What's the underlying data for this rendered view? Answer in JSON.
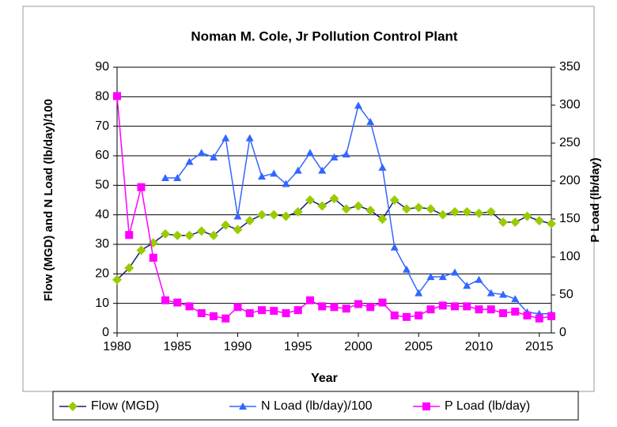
{
  "chart_data": {
    "type": "line",
    "title": "Noman M. Cole, Jr Pollution Control Plant",
    "x_label": "Year",
    "y_label": "Flow (MGD) and N Load (lb/day)/100",
    "y2_label": "P Load (lb/day)",
    "x": [
      1980,
      1981,
      1982,
      1983,
      1984,
      1985,
      1986,
      1987,
      1988,
      1989,
      1990,
      1991,
      1992,
      1993,
      1994,
      1995,
      1996,
      1997,
      1998,
      1999,
      2000,
      2001,
      2002,
      2003,
      2004,
      2005,
      2006,
      2007,
      2008,
      2009,
      2010,
      2011,
      2012,
      2013,
      2014,
      2015,
      2016
    ],
    "xlim": [
      1980,
      2016
    ],
    "xticks": [
      1980,
      1985,
      1990,
      1995,
      2000,
      2005,
      2010,
      2015
    ],
    "ylim": [
      0,
      90
    ],
    "yticks": [
      0,
      10,
      20,
      30,
      40,
      50,
      60,
      70,
      80,
      90
    ],
    "y2lim": [
      0,
      350
    ],
    "y2ticks": [
      0,
      50,
      100,
      150,
      200,
      250,
      300,
      350
    ],
    "grid": true,
    "legend": "bottom",
    "series": [
      {
        "name": "Flow (MGD)",
        "color": "#1a1a7a",
        "marker_color": "#99cc00",
        "marker": "diamond",
        "values": [
          18,
          22,
          28,
          30.5,
          33.5,
          33,
          33,
          34.5,
          33,
          36.5,
          35,
          38,
          40,
          40,
          39.5,
          41,
          45,
          43,
          45.5,
          42,
          43,
          41.5,
          38.5,
          45,
          42,
          42.5,
          42,
          40,
          41,
          41,
          40.5,
          41,
          37.5,
          37.5,
          39.5,
          38,
          37
        ]
      },
      {
        "name": "N Load (lb/day)/100",
        "color": "#3366ff",
        "marker_color": "#3366ff",
        "marker": "triangle",
        "values": [
          null,
          null,
          null,
          null,
          52.5,
          52.5,
          58,
          61,
          59.5,
          66,
          39.5,
          66,
          53,
          54,
          50.5,
          55,
          61,
          55,
          59.5,
          60.5,
          77,
          71.5,
          56,
          29,
          21.5,
          13.5,
          19,
          19,
          20.5,
          16,
          18,
          13.5,
          13,
          11.5,
          7,
          6.5,
          6.5
        ]
      },
      {
        "name": "P Load (lb/day)",
        "color": "#ff00ff",
        "marker_color": "#ff00ff",
        "marker": "square",
        "axis": "y2",
        "values": [
          312,
          129,
          192,
          99,
          43,
          40,
          35,
          26,
          22,
          19,
          34,
          26,
          30,
          29,
          26,
          30,
          43,
          35,
          34,
          32,
          38,
          34,
          40,
          23,
          21,
          23,
          31,
          36,
          35,
          35,
          31,
          31,
          26,
          28,
          23,
          19,
          22
        ]
      }
    ]
  }
}
